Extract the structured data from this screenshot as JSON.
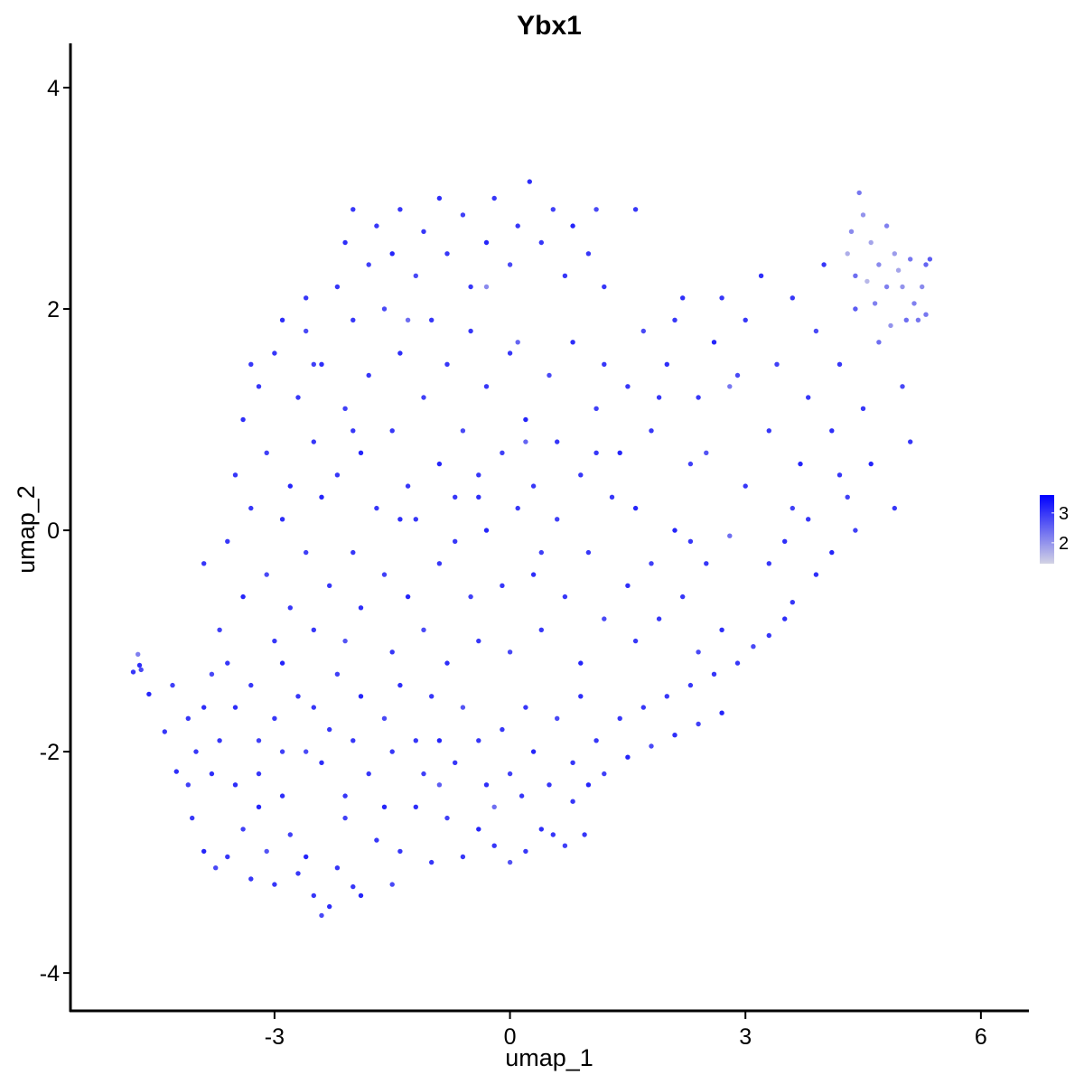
{
  "chart_data": {
    "type": "scatter",
    "title": "Ybx1",
    "xlabel": "umap_1",
    "ylabel": "umap_2",
    "xlim": [
      -5.6,
      6.6
    ],
    "ylim": [
      -4.35,
      4.4
    ],
    "x_ticks": [
      -3,
      0,
      3,
      6
    ],
    "x_tick_labels": [
      "-3",
      "0",
      "3",
      "6"
    ],
    "y_ticks": [
      -4,
      -2,
      0,
      2,
      4
    ],
    "y_tick_labels": [
      "-4",
      "-2",
      "0",
      "2",
      "4"
    ],
    "grid": false,
    "color_scale": {
      "low_color": "#d3d3e4",
      "high_color": "#0000ff",
      "min": 1.3,
      "max": 3.6,
      "legend_ticks": [
        2,
        3
      ],
      "legend_tick_labels": [
        "2",
        "3"
      ],
      "legend_position": "right"
    },
    "point_colors": {
      "dominant": "#4a2ef2",
      "light": "#9a8ee6"
    },
    "points": [
      [
        -4.8,
        -1.28,
        3.0
      ],
      [
        -4.72,
        -1.22,
        3.1
      ],
      [
        -4.7,
        -1.26,
        2.8
      ],
      [
        -4.74,
        -1.12,
        2.2
      ],
      [
        -4.6,
        -1.48,
        3.2
      ],
      [
        -4.4,
        -1.82,
        3.0
      ],
      [
        -4.25,
        -2.18,
        3.1
      ],
      [
        -4.1,
        -2.3,
        2.9
      ],
      [
        -4.05,
        -2.6,
        3.0
      ],
      [
        -3.9,
        -2.9,
        3.2
      ],
      [
        -3.75,
        -3.05,
        2.8
      ],
      [
        -3.6,
        -2.95,
        3.0
      ],
      [
        -3.5,
        -2.3,
        3.1
      ],
      [
        -3.4,
        -2.7,
        2.9
      ],
      [
        -3.3,
        -3.15,
        3.0
      ],
      [
        -3.2,
        -2.5,
        3.2
      ],
      [
        -3.1,
        -2.9,
        2.7
      ],
      [
        -3.0,
        -3.2,
        3.0
      ],
      [
        -2.9,
        -2.4,
        3.1
      ],
      [
        -2.8,
        -2.75,
        2.9
      ],
      [
        -2.7,
        -3.1,
        3.0
      ],
      [
        -2.6,
        -2.95,
        3.2
      ],
      [
        -2.5,
        -3.3,
        3.0
      ],
      [
        -2.4,
        -3.48,
        2.8
      ],
      [
        -2.3,
        -3.4,
        3.1
      ],
      [
        -2.2,
        -3.05,
        3.0
      ],
      [
        -2.1,
        -2.6,
        2.9
      ],
      [
        -2.0,
        -3.22,
        3.0
      ],
      [
        -1.9,
        -3.3,
        3.2
      ],
      [
        -1.7,
        -2.8,
        3.0
      ],
      [
        -1.5,
        -3.2,
        2.8
      ],
      [
        -1.4,
        -2.9,
        3.0
      ],
      [
        -1.2,
        -2.5,
        3.1
      ],
      [
        -1.0,
        -3.0,
        3.0
      ],
      [
        -0.8,
        -2.6,
        2.9
      ],
      [
        -0.6,
        -2.95,
        3.0
      ],
      [
        -0.4,
        -2.7,
        3.2
      ],
      [
        -0.2,
        -2.85,
        3.0
      ],
      [
        0.0,
        -3.0,
        2.7
      ],
      [
        0.2,
        -2.9,
        3.0
      ],
      [
        0.4,
        -2.7,
        3.1
      ],
      [
        0.55,
        -2.75,
        3.0
      ],
      [
        0.7,
        -2.85,
        2.9
      ],
      [
        0.95,
        -2.75,
        3.0
      ],
      [
        1.0,
        -2.3,
        3.2
      ],
      [
        -4.3,
        -1.4,
        2.9
      ],
      [
        -4.1,
        -1.7,
        3.0
      ],
      [
        -3.9,
        -1.6,
        3.1
      ],
      [
        -3.7,
        -1.9,
        3.0
      ],
      [
        -3.8,
        -1.3,
        2.8
      ],
      [
        -3.6,
        -1.2,
        3.0
      ],
      [
        -3.5,
        -1.6,
        3.1
      ],
      [
        -3.3,
        -1.4,
        3.0
      ],
      [
        -3.2,
        -1.9,
        2.9
      ],
      [
        -3.0,
        -1.7,
        3.0
      ],
      [
        -2.9,
        -1.2,
        3.2
      ],
      [
        -2.7,
        -1.5,
        3.0
      ],
      [
        -2.6,
        -2.0,
        2.8
      ],
      [
        -2.5,
        -1.6,
        3.0
      ],
      [
        -2.4,
        -2.1,
        3.1
      ],
      [
        -2.3,
        -1.8,
        3.0
      ],
      [
        -2.2,
        -1.3,
        2.9
      ],
      [
        -2.0,
        -1.9,
        3.0
      ],
      [
        -1.9,
        -1.5,
        3.2
      ],
      [
        -1.8,
        -2.2,
        3.0
      ],
      [
        -1.6,
        -1.7,
        2.8
      ],
      [
        -1.5,
        -2.0,
        3.0
      ],
      [
        -1.4,
        -1.4,
        3.1
      ],
      [
        -1.2,
        -1.9,
        3.0
      ],
      [
        -1.1,
        -2.2,
        2.9
      ],
      [
        -1.0,
        -1.5,
        3.0
      ],
      [
        -0.9,
        -1.9,
        3.2
      ],
      [
        -0.7,
        -2.1,
        3.0
      ],
      [
        -0.6,
        -1.6,
        2.7
      ],
      [
        -0.4,
        -1.9,
        3.0
      ],
      [
        -0.3,
        -2.3,
        3.1
      ],
      [
        -0.1,
        -1.8,
        3.0
      ],
      [
        0.0,
        -2.2,
        2.9
      ],
      [
        0.2,
        -1.6,
        3.0
      ],
      [
        0.3,
        -2.0,
        3.2
      ],
      [
        0.5,
        -2.3,
        3.0
      ],
      [
        0.6,
        -1.7,
        2.8
      ],
      [
        0.8,
        -2.1,
        3.0
      ],
      [
        0.9,
        -1.5,
        3.1
      ],
      [
        1.1,
        -1.9,
        3.0
      ],
      [
        1.2,
        -2.2,
        2.9
      ],
      [
        1.4,
        -1.7,
        3.0
      ],
      [
        1.5,
        -2.05,
        3.2
      ],
      [
        1.7,
        -1.6,
        3.0
      ],
      [
        1.8,
        -1.95,
        2.8
      ],
      [
        2.0,
        -1.5,
        3.0
      ],
      [
        2.1,
        -1.85,
        3.1
      ],
      [
        2.3,
        -1.4,
        3.0
      ],
      [
        2.4,
        -1.75,
        2.9
      ],
      [
        2.6,
        -1.3,
        3.0
      ],
      [
        2.7,
        -1.65,
        3.2
      ],
      [
        2.9,
        -1.2,
        3.0
      ],
      [
        3.1,
        -1.05,
        2.8
      ],
      [
        3.3,
        -0.95,
        3.0
      ],
      [
        3.5,
        -0.8,
        3.1
      ],
      [
        3.6,
        -0.65,
        3.0
      ],
      [
        -3.9,
        -0.3,
        3.0
      ],
      [
        -3.7,
        -0.9,
        2.9
      ],
      [
        -3.6,
        -0.1,
        3.0
      ],
      [
        -3.4,
        -0.6,
        3.2
      ],
      [
        -3.3,
        0.2,
        3.0
      ],
      [
        -3.1,
        -0.4,
        2.8
      ],
      [
        -3.0,
        -1.0,
        3.0
      ],
      [
        -2.9,
        0.1,
        3.1
      ],
      [
        -2.8,
        -0.7,
        3.0
      ],
      [
        -2.6,
        -0.2,
        2.9
      ],
      [
        -2.5,
        -0.9,
        3.0
      ],
      [
        -2.4,
        0.3,
        3.2
      ],
      [
        -2.3,
        -0.5,
        3.0
      ],
      [
        -2.1,
        -1.0,
        2.7
      ],
      [
        -2.0,
        -0.2,
        3.0
      ],
      [
        -1.9,
        -0.7,
        3.1
      ],
      [
        -1.7,
        0.2,
        3.0
      ],
      [
        -1.6,
        -0.4,
        2.9
      ],
      [
        -1.5,
        -1.1,
        3.0
      ],
      [
        -1.3,
        -0.6,
        3.2
      ],
      [
        -1.2,
        0.1,
        3.0
      ],
      [
        -1.1,
        -0.9,
        2.8
      ],
      [
        -0.9,
        -0.3,
        3.0
      ],
      [
        -0.8,
        -1.2,
        3.1
      ],
      [
        -0.7,
        0.3,
        3.0
      ],
      [
        -0.5,
        -0.6,
        2.9
      ],
      [
        -0.4,
        -1.0,
        3.0
      ],
      [
        -0.3,
        0.0,
        3.2
      ],
      [
        -0.1,
        -0.5,
        3.0
      ],
      [
        0.0,
        -1.1,
        2.8
      ],
      [
        0.1,
        0.2,
        3.0
      ],
      [
        0.3,
        -0.4,
        3.1
      ],
      [
        0.4,
        -0.9,
        3.0
      ],
      [
        0.6,
        0.1,
        2.9
      ],
      [
        0.7,
        -0.6,
        3.0
      ],
      [
        0.9,
        -1.2,
        3.2
      ],
      [
        1.0,
        -0.2,
        3.0
      ],
      [
        1.2,
        -0.8,
        2.8
      ],
      [
        1.3,
        0.3,
        3.0
      ],
      [
        1.5,
        -0.5,
        3.1
      ],
      [
        1.6,
        -1.0,
        3.0
      ],
      [
        1.8,
        -0.3,
        2.9
      ],
      [
        1.9,
        -0.8,
        3.0
      ],
      [
        2.1,
        0.0,
        3.2
      ],
      [
        2.2,
        -0.6,
        3.0
      ],
      [
        2.4,
        -1.1,
        2.8
      ],
      [
        2.5,
        -0.3,
        3.0
      ],
      [
        2.7,
        -0.9,
        3.1
      ],
      [
        2.8,
        -0.05,
        2.4
      ],
      [
        3.3,
        -0.3,
        3.0
      ],
      [
        3.5,
        -0.1,
        3.1
      ],
      [
        3.8,
        0.1,
        3.0
      ],
      [
        4.1,
        -0.2,
        3.2
      ],
      [
        4.4,
        0.0,
        2.9
      ],
      [
        -3.5,
        0.5,
        3.0
      ],
      [
        -3.4,
        1.0,
        3.1
      ],
      [
        -3.2,
        1.3,
        3.0
      ],
      [
        -3.1,
        0.7,
        2.9
      ],
      [
        -3.0,
        1.6,
        3.0
      ],
      [
        -2.8,
        0.4,
        3.2
      ],
      [
        -2.7,
        1.2,
        3.0
      ],
      [
        -2.6,
        1.8,
        2.8
      ],
      [
        -2.5,
        0.8,
        3.0
      ],
      [
        -2.4,
        1.5,
        3.1
      ],
      [
        -2.2,
        0.5,
        3.0
      ],
      [
        -2.1,
        1.1,
        2.9
      ],
      [
        -2.0,
        1.9,
        3.0
      ],
      [
        -1.9,
        0.7,
        3.2
      ],
      [
        -1.8,
        1.4,
        3.0
      ],
      [
        -1.6,
        2.0,
        2.8
      ],
      [
        -1.5,
        0.9,
        3.0
      ],
      [
        -1.4,
        1.6,
        3.1
      ],
      [
        -1.3,
        0.4,
        3.0
      ],
      [
        -1.1,
        1.2,
        2.9
      ],
      [
        -1.0,
        1.9,
        3.0
      ],
      [
        -0.9,
        0.6,
        3.2
      ],
      [
        -0.8,
        1.5,
        3.0
      ],
      [
        -0.6,
        0.9,
        2.8
      ],
      [
        -0.5,
        1.8,
        3.0
      ],
      [
        -0.4,
        0.3,
        3.1
      ],
      [
        -0.3,
        1.3,
        3.0
      ],
      [
        -0.1,
        0.7,
        2.9
      ],
      [
        0.0,
        1.6,
        3.0
      ],
      [
        0.2,
        1.0,
        3.2
      ],
      [
        0.3,
        0.4,
        3.0
      ],
      [
        0.5,
        1.4,
        2.8
      ],
      [
        0.6,
        0.8,
        3.0
      ],
      [
        0.8,
        1.7,
        3.1
      ],
      [
        0.9,
        0.5,
        3.0
      ],
      [
        1.1,
        1.1,
        2.9
      ],
      [
        1.2,
        1.5,
        3.0
      ],
      [
        1.4,
        0.7,
        3.2
      ],
      [
        1.5,
        1.3,
        3.0
      ],
      [
        1.7,
        1.8,
        2.8
      ],
      [
        1.8,
        0.9,
        3.0
      ],
      [
        2.0,
        1.5,
        3.1
      ],
      [
        2.1,
        1.9,
        3.0
      ],
      [
        2.3,
        0.6,
        2.9
      ],
      [
        2.4,
        1.2,
        3.0
      ],
      [
        2.6,
        1.7,
        3.2
      ],
      [
        2.7,
        2.1,
        3.0
      ],
      [
        2.9,
        1.4,
        2.8
      ],
      [
        3.0,
        1.9,
        3.0
      ],
      [
        3.2,
        2.3,
        3.1
      ],
      [
        3.3,
        0.9,
        3.0
      ],
      [
        3.4,
        1.5,
        2.9
      ],
      [
        3.6,
        2.1,
        3.0
      ],
      [
        3.7,
        0.6,
        3.2
      ],
      [
        3.8,
        1.2,
        3.0
      ],
      [
        3.9,
        1.8,
        2.8
      ],
      [
        4.0,
        2.4,
        3.0
      ],
      [
        4.1,
        0.9,
        3.1
      ],
      [
        4.2,
        1.5,
        3.0
      ],
      [
        4.3,
        0.3,
        2.9
      ],
      [
        4.4,
        2.0,
        2.6
      ],
      [
        4.5,
        1.1,
        3.0
      ],
      [
        4.6,
        0.6,
        3.2
      ],
      [
        4.7,
        1.7,
        2.4
      ],
      [
        4.8,
        2.2,
        2.2
      ],
      [
        4.9,
        0.2,
        3.0
      ],
      [
        5.0,
        1.3,
        2.8
      ],
      [
        5.1,
        0.8,
        3.0
      ],
      [
        5.2,
        1.9,
        2.3
      ],
      [
        5.3,
        2.4,
        2.5
      ],
      [
        4.35,
        2.7,
        2.1
      ],
      [
        4.45,
        3.05,
        2.3
      ],
      [
        4.5,
        2.85,
        2.0
      ],
      [
        4.6,
        2.6,
        1.8
      ],
      [
        4.7,
        2.4,
        2.1
      ],
      [
        4.8,
        2.75,
        2.2
      ],
      [
        4.9,
        2.5,
        1.9
      ],
      [
        5.0,
        2.2,
        2.0
      ],
      [
        5.1,
        2.45,
        2.3
      ],
      [
        5.25,
        2.2,
        2.1
      ],
      [
        4.3,
        2.5,
        1.7
      ],
      [
        4.4,
        2.3,
        2.4
      ],
      [
        4.55,
        2.25,
        1.6
      ],
      [
        4.65,
        2.05,
        2.2
      ],
      [
        4.85,
        1.85,
        2.0
      ],
      [
        4.95,
        2.35,
        1.8
      ],
      [
        5.15,
        2.05,
        2.2
      ],
      [
        5.35,
        2.45,
        2.6
      ],
      [
        5.3,
        1.95,
        2.3
      ],
      [
        5.05,
        1.9,
        2.4
      ],
      [
        -2.2,
        2.2,
        3.0
      ],
      [
        -2.1,
        2.6,
        3.1
      ],
      [
        -2.0,
        2.9,
        3.0
      ],
      [
        -1.8,
        2.4,
        2.9
      ],
      [
        -1.7,
        2.75,
        3.0
      ],
      [
        -1.5,
        2.5,
        3.2
      ],
      [
        -1.4,
        2.9,
        3.0
      ],
      [
        -1.2,
        2.3,
        2.8
      ],
      [
        -1.1,
        2.7,
        3.0
      ],
      [
        -0.9,
        3.0,
        3.1
      ],
      [
        -0.8,
        2.5,
        3.0
      ],
      [
        -0.6,
        2.85,
        2.9
      ],
      [
        -0.5,
        2.2,
        3.0
      ],
      [
        -0.3,
        2.6,
        3.2
      ],
      [
        -0.2,
        3.0,
        3.0
      ],
      [
        0.0,
        2.4,
        2.8
      ],
      [
        0.1,
        2.75,
        3.0
      ],
      [
        0.25,
        3.15,
        3.1
      ],
      [
        0.4,
        2.6,
        3.0
      ],
      [
        0.55,
        2.9,
        2.9
      ],
      [
        0.7,
        2.3,
        3.0
      ],
      [
        0.8,
        2.75,
        3.2
      ],
      [
        1.0,
        2.5,
        3.0
      ],
      [
        1.1,
        2.9,
        2.8
      ],
      [
        1.2,
        2.2,
        3.0
      ],
      [
        -2.6,
        2.1,
        3.0
      ],
      [
        -2.5,
        1.5,
        2.9
      ],
      [
        -2.9,
        1.9,
        3.1
      ],
      [
        -3.3,
        1.5,
        3.0
      ],
      [
        -1.3,
        1.9,
        2.4
      ],
      [
        -0.3,
        2.2,
        2.1
      ],
      [
        0.1,
        1.7,
        2.5
      ],
      [
        1.6,
        2.9,
        3.0
      ],
      [
        2.2,
        2.1,
        3.1
      ],
      [
        2.8,
        1.3,
        2.3
      ],
      [
        -4.0,
        -2.0,
        3.0
      ],
      [
        -3.8,
        -2.2,
        3.1
      ],
      [
        -3.2,
        -2.2,
        3.0
      ],
      [
        -2.9,
        -2.0,
        2.9
      ],
      [
        -2.1,
        -2.4,
        3.0
      ],
      [
        -1.6,
        -2.5,
        3.2
      ],
      [
        -0.9,
        -2.3,
        2.6
      ],
      [
        -0.2,
        -2.5,
        2.4
      ],
      [
        0.15,
        -2.4,
        3.0
      ],
      [
        0.8,
        -2.45,
        3.0
      ],
      [
        -2.0,
        0.9,
        3.0
      ],
      [
        -1.4,
        0.1,
        3.1
      ],
      [
        -0.7,
        -0.1,
        3.0
      ],
      [
        0.4,
        -0.2,
        2.9
      ],
      [
        1.1,
        0.7,
        3.0
      ],
      [
        1.6,
        0.2,
        3.2
      ],
      [
        2.3,
        -0.1,
        3.0
      ],
      [
        0.2,
        0.8,
        2.5
      ],
      [
        -0.4,
        0.5,
        3.0
      ],
      [
        1.9,
        1.2,
        3.0
      ],
      [
        3.0,
        0.4,
        3.0
      ],
      [
        2.5,
        0.7,
        2.7
      ],
      [
        3.9,
        -0.4,
        3.1
      ],
      [
        4.2,
        0.5,
        3.0
      ],
      [
        3.6,
        0.2,
        2.9
      ]
    ]
  }
}
